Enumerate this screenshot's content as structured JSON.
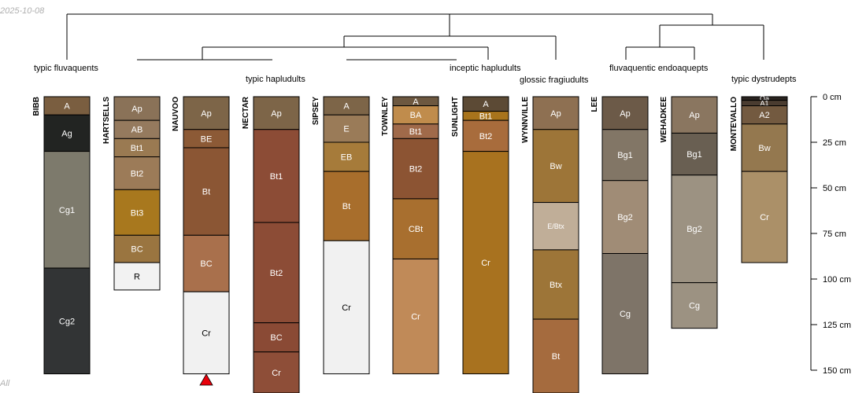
{
  "chart_data": {
    "type": "soil-profile-sketch",
    "date_stamp": "2025-10-08",
    "corner_stamp": "All",
    "depth_unit": "cm",
    "depth_axis": {
      "ticks": [
        0,
        25,
        50,
        75,
        100,
        125,
        150
      ],
      "labels": [
        "0 cm",
        "25 cm",
        "50 cm",
        "75 cm",
        "100 cm",
        "125 cm",
        "150 cm"
      ]
    },
    "groups": [
      {
        "label": "typic fluvaquents",
        "profiles": [
          0
        ]
      },
      {
        "label": "typic hapludults",
        "profiles": [
          1,
          2,
          3,
          4,
          5
        ]
      },
      {
        "label": "inceptic hapludults",
        "profiles": [
          6
        ]
      },
      {
        "label": "glossic fragiudults",
        "profiles": [
          7
        ]
      },
      {
        "label": "fluvaquentic endoaquepts",
        "profiles": [
          8,
          9
        ]
      },
      {
        "label": "typic dystrudepts",
        "profiles": [
          10
        ]
      }
    ],
    "profiles": [
      {
        "name": "BIBB",
        "horizons": [
          {
            "name": "A",
            "top": 0,
            "bottom": 10,
            "color": "#7a5e40"
          },
          {
            "name": "Ag",
            "top": 10,
            "bottom": 30,
            "color": "#222422"
          },
          {
            "name": "Cg1",
            "top": 30,
            "bottom": 94,
            "color": "#7d7a6c"
          },
          {
            "name": "Cg2",
            "top": 94,
            "bottom": 152,
            "color": "#323435"
          }
        ]
      },
      {
        "name": "HARTSELLS",
        "horizons": [
          {
            "name": "Ap",
            "top": 0,
            "bottom": 13,
            "color": "#8a7258"
          },
          {
            "name": "AB",
            "top": 13,
            "bottom": 23,
            "color": "#957a5e"
          },
          {
            "name": "Bt1",
            "top": 23,
            "bottom": 33,
            "color": "#9a7a52"
          },
          {
            "name": "Bt2",
            "top": 33,
            "bottom": 51,
            "color": "#9c7b58"
          },
          {
            "name": "Bt3",
            "top": 51,
            "bottom": 76,
            "color": "#a8781e"
          },
          {
            "name": "BC",
            "top": 76,
            "bottom": 91,
            "color": "#9a7540"
          },
          {
            "name": "R",
            "top": 91,
            "bottom": 106,
            "color": "#f2f2f2"
          }
        ]
      },
      {
        "name": "NAUVOO",
        "horizons": [
          {
            "name": "Ap",
            "top": 0,
            "bottom": 18,
            "color": "#7d6548"
          },
          {
            "name": "BE",
            "top": 18,
            "bottom": 28,
            "color": "#8c5a36"
          },
          {
            "name": "Bt",
            "top": 28,
            "bottom": 76,
            "color": "#8b5634"
          },
          {
            "name": "BC",
            "top": 76,
            "bottom": 107,
            "color": "#a9704c"
          },
          {
            "name": "Cr",
            "top": 107,
            "bottom": 152,
            "color": "#f1f1f1"
          }
        ]
      },
      {
        "name": "NECTAR",
        "horizons": [
          {
            "name": "Ap",
            "top": 0,
            "bottom": 18,
            "color": "#7d6548"
          },
          {
            "name": "Bt1",
            "top": 18,
            "bottom": 69,
            "color": "#8c4c36"
          },
          {
            "name": "Bt2",
            "top": 69,
            "bottom": 124,
            "color": "#8c4c36"
          },
          {
            "name": "BC",
            "top": 124,
            "bottom": 140,
            "color": "#8a4a35"
          },
          {
            "name": "Cr",
            "top": 140,
            "bottom": 165,
            "color": "#8e4e38"
          }
        ]
      },
      {
        "name": "SIPSEY",
        "horizons": [
          {
            "name": "A",
            "top": 0,
            "bottom": 10,
            "color": "#7d6548"
          },
          {
            "name": "E",
            "top": 10,
            "bottom": 25,
            "color": "#9a7b58"
          },
          {
            "name": "EB",
            "top": 25,
            "bottom": 41,
            "color": "#a67b3a"
          },
          {
            "name": "Bt",
            "top": 41,
            "bottom": 79,
            "color": "#a86e2c"
          },
          {
            "name": "Cr",
            "top": 79,
            "bottom": 152,
            "color": "#f1f1f1"
          }
        ]
      },
      {
        "name": "TOWNLEY",
        "horizons": [
          {
            "name": "A",
            "top": 0,
            "bottom": 5,
            "color": "#6d5840"
          },
          {
            "name": "BA",
            "top": 5,
            "bottom": 15,
            "color": "#c08c4c"
          },
          {
            "name": "Bt1",
            "top": 15,
            "bottom": 23,
            "color": "#a06a4a"
          },
          {
            "name": "Bt2",
            "top": 23,
            "bottom": 56,
            "color": "#8c5433"
          },
          {
            "name": "CBt",
            "top": 56,
            "bottom": 89,
            "color": "#a86f2f"
          },
          {
            "name": "Cr",
            "top": 89,
            "bottom": 152,
            "color": "#c08a58"
          }
        ]
      },
      {
        "name": "SUNLIGHT",
        "horizons": [
          {
            "name": "A",
            "top": 0,
            "bottom": 8,
            "color": "#5c4a35"
          },
          {
            "name": "Bt1",
            "top": 8,
            "bottom": 13,
            "color": "#a8741c"
          },
          {
            "name": "Bt2",
            "top": 13,
            "bottom": 30,
            "color": "#a86c3c"
          },
          {
            "name": "Cr",
            "top": 30,
            "bottom": 152,
            "color": "#a8721f"
          }
        ]
      },
      {
        "name": "WYNNVILLE",
        "horizons": [
          {
            "name": "Ap",
            "top": 0,
            "bottom": 18,
            "color": "#8e7052"
          },
          {
            "name": "Bw",
            "top": 18,
            "bottom": 58,
            "color": "#9d7538"
          },
          {
            "name": "E/Btx",
            "top": 58,
            "bottom": 84,
            "color": "#c0ae98"
          },
          {
            "name": "Btx",
            "top": 84,
            "bottom": 122,
            "color": "#9d7538"
          },
          {
            "name": "Bt",
            "top": 122,
            "bottom": 165,
            "color": "#a56b3e"
          }
        ]
      },
      {
        "name": "LEE",
        "horizons": [
          {
            "name": "Ap",
            "top": 0,
            "bottom": 18,
            "color": "#6c5a48"
          },
          {
            "name": "Bg1",
            "top": 18,
            "bottom": 46,
            "color": "#827666"
          },
          {
            "name": "Bg2",
            "top": 46,
            "bottom": 86,
            "color": "#a08c76"
          },
          {
            "name": "Cg",
            "top": 86,
            "bottom": 152,
            "color": "#7e7468"
          }
        ]
      },
      {
        "name": "WEHADKEE",
        "horizons": [
          {
            "name": "Ap",
            "top": 0,
            "bottom": 20,
            "color": "#8a7660"
          },
          {
            "name": "Bg1",
            "top": 20,
            "bottom": 43,
            "color": "#695f52"
          },
          {
            "name": "Bg2",
            "top": 43,
            "bottom": 102,
            "color": "#9c9282"
          },
          {
            "name": "Cg",
            "top": 102,
            "bottom": 127,
            "color": "#9c9282"
          }
        ]
      },
      {
        "name": "MONTEVALLO",
        "horizons": [
          {
            "name": "Oa",
            "top": 0,
            "bottom": 2,
            "color": "#2a2420"
          },
          {
            "name": "A1",
            "top": 2,
            "bottom": 5,
            "color": "#4a3c30"
          },
          {
            "name": "A2",
            "top": 5,
            "bottom": 15,
            "color": "#735a40"
          },
          {
            "name": "Bw",
            "top": 15,
            "bottom": 41,
            "color": "#94784f"
          },
          {
            "name": "Cr",
            "top": 41,
            "bottom": 91,
            "color": "#ab9068"
          }
        ]
      }
    ]
  }
}
